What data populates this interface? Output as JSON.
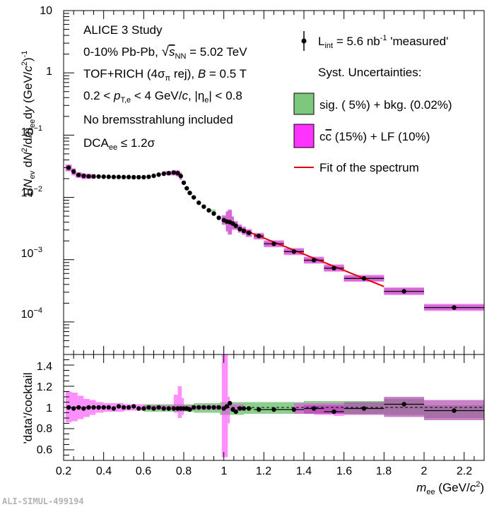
{
  "colors": {
    "sig_band": "#2ea82e",
    "ccbar_band": "#ff33ff",
    "combined_band": "#b04ab0",
    "fit_line": "#e00000",
    "points": "#000000"
  },
  "chart_data": [
    {
      "id": "top",
      "type": "scatter",
      "y_scale": "log",
      "xlim": [
        0.2,
        2.3
      ],
      "ylim": [
        3e-05,
        10
      ],
      "y_ticks": [
        {
          "v": 10,
          "base": "10",
          "exp": ""
        },
        {
          "v": 1,
          "base": "1",
          "exp": ""
        },
        {
          "v": 0.1,
          "base": "10",
          "exp": "−1"
        },
        {
          "v": 0.01,
          "base": "10",
          "exp": "−2"
        },
        {
          "v": 0.001,
          "base": "10",
          "exp": "−3"
        },
        {
          "v": 0.0001,
          "base": "10",
          "exp": "−4"
        }
      ],
      "ylabel": {
        "p1": "1/",
        "N": "N",
        "ev": "ev",
        "p2": " d",
        "N2": "N",
        "s2": "2",
        "p3": "/d",
        "m": "m",
        "ee": "ee",
        "p4": "d",
        "y": "y",
        "p5": " (GeV/",
        "c": "c",
        "s3": "2",
        "p6": ")",
        "s4": "-1"
      },
      "annotations": {
        "study": "ALICE 3 Study",
        "system_a": "0-10% Pb-Pb, ",
        "sqrt_s": "s",
        "sqrt_sub": "NN",
        "system_b": " = 5.02 TeV",
        "pid_a": "TOF+RICH (4σ",
        "pid_sub": "π",
        "pid_b": " rej), ",
        "pid_B": "B",
        "pid_c": " = 0.5 T",
        "kin_a": "0.2 < ",
        "kin_p": "p",
        "kin_sub": "T,e",
        "kin_b": " < 4 GeV/",
        "kin_c": "c",
        "kin_d": ", |η",
        "kin_sub2": "e",
        "kin_e": "| < 0.8",
        "brems": "No bremsstrahlung included",
        "dca_a": "DCA",
        "dca_sub": "ee",
        "dca_b": " ≤ 1.2σ"
      },
      "legend": {
        "placement": "top-right",
        "data_a": "L",
        "data_sub": "int",
        "data_b": " = 5.6 nb",
        "data_sup": "-1",
        "data_c": " 'measured'",
        "syst_title": "Syst. Uncertainties:",
        "sig": "sig. ( 5%) + bkg. (0.02%)",
        "ccbar_a": "c",
        "ccbar_bar": "c",
        "ccbar_b": " (15%) + LF (10%)",
        "fit": "Fit of the spectrum"
      },
      "points": [
        {
          "x": 0.225,
          "y": 0.03,
          "hw": 0.01
        },
        {
          "x": 0.25,
          "y": 0.026,
          "hw": 0.01
        },
        {
          "x": 0.275,
          "y": 0.023,
          "hw": 0.01
        },
        {
          "x": 0.3,
          "y": 0.0222,
          "hw": 0.01
        },
        {
          "x": 0.325,
          "y": 0.0218,
          "hw": 0.01
        },
        {
          "x": 0.35,
          "y": 0.0217,
          "hw": 0.01
        },
        {
          "x": 0.375,
          "y": 0.0216,
          "hw": 0.01
        },
        {
          "x": 0.4,
          "y": 0.0215,
          "hw": 0.01
        },
        {
          "x": 0.425,
          "y": 0.0214,
          "hw": 0.01
        },
        {
          "x": 0.45,
          "y": 0.0213,
          "hw": 0.01
        },
        {
          "x": 0.475,
          "y": 0.0213,
          "hw": 0.01
        },
        {
          "x": 0.5,
          "y": 0.0212,
          "hw": 0.01
        },
        {
          "x": 0.525,
          "y": 0.0212,
          "hw": 0.01
        },
        {
          "x": 0.55,
          "y": 0.0211,
          "hw": 0.01
        },
        {
          "x": 0.575,
          "y": 0.0211,
          "hw": 0.01
        },
        {
          "x": 0.6,
          "y": 0.0211,
          "hw": 0.01
        },
        {
          "x": 0.625,
          "y": 0.0214,
          "hw": 0.01
        },
        {
          "x": 0.65,
          "y": 0.0222,
          "hw": 0.01
        },
        {
          "x": 0.675,
          "y": 0.0232,
          "hw": 0.01
        },
        {
          "x": 0.7,
          "y": 0.024,
          "hw": 0.01
        },
        {
          "x": 0.725,
          "y": 0.0245,
          "hw": 0.01
        },
        {
          "x": 0.75,
          "y": 0.025,
          "hw": 0.01
        },
        {
          "x": 0.77,
          "y": 0.0245,
          "hw": 0.008
        },
        {
          "x": 0.785,
          "y": 0.022,
          "hw": 0.006
        },
        {
          "x": 0.8,
          "y": 0.0172,
          "hw": 0.006
        },
        {
          "x": 0.815,
          "y": 0.014,
          "hw": 0.006
        },
        {
          "x": 0.83,
          "y": 0.0118,
          "hw": 0.006
        },
        {
          "x": 0.85,
          "y": 0.01,
          "hw": 0.008
        },
        {
          "x": 0.875,
          "y": 0.0082,
          "hw": 0.01
        },
        {
          "x": 0.9,
          "y": 0.0071,
          "hw": 0.01
        },
        {
          "x": 0.925,
          "y": 0.0062,
          "hw": 0.01
        },
        {
          "x": 0.95,
          "y": 0.0055,
          "hw": 0.01
        },
        {
          "x": 0.975,
          "y": 0.0047,
          "hw": 0.01
        },
        {
          "x": 1.0,
          "y": 0.0043,
          "hw": 0.008
        },
        {
          "x": 1.015,
          "y": 0.0041,
          "hw": 0.006
        },
        {
          "x": 1.03,
          "y": 0.004,
          "hw": 0.006
        },
        {
          "x": 1.045,
          "y": 0.0038,
          "hw": 0.006
        },
        {
          "x": 1.06,
          "y": 0.0035,
          "hw": 0.008
        },
        {
          "x": 1.08,
          "y": 0.0031,
          "hw": 0.01
        },
        {
          "x": 1.1,
          "y": 0.0029,
          "hw": 0.01
        },
        {
          "x": 1.125,
          "y": 0.0027,
          "hw": 0.015
        },
        {
          "x": 1.175,
          "y": 0.0024,
          "hw": 0.025
        },
        {
          "x": 1.25,
          "y": 0.0018,
          "hw": 0.05
        },
        {
          "x": 1.35,
          "y": 0.00135,
          "hw": 0.05
        },
        {
          "x": 1.45,
          "y": 0.00098,
          "hw": 0.05
        },
        {
          "x": 1.55,
          "y": 0.00073,
          "hw": 0.05
        },
        {
          "x": 1.7,
          "y": 0.0005,
          "hw": 0.1
        },
        {
          "x": 1.9,
          "y": 0.00031,
          "hw": 0.1
        },
        {
          "x": 2.15,
          "y": 0.00017,
          "hw": 0.15
        }
      ],
      "bands": [
        {
          "x0": 0.21,
          "x1": 0.24,
          "lo": 0.026,
          "hi": 0.034
        },
        {
          "x0": 0.24,
          "x1": 0.26,
          "lo": 0.0225,
          "hi": 0.0295
        },
        {
          "x0": 0.26,
          "x1": 0.29,
          "lo": 0.0205,
          "hi": 0.0255
        },
        {
          "x0": 0.29,
          "x1": 0.31,
          "lo": 0.0195,
          "hi": 0.0245
        },
        {
          "x0": 0.31,
          "x1": 0.34,
          "lo": 0.0198,
          "hi": 0.024
        },
        {
          "x0": 0.34,
          "x1": 0.36,
          "lo": 0.0199,
          "hi": 0.0237
        },
        {
          "x0": 0.7,
          "x1": 0.74,
          "lo": 0.0225,
          "hi": 0.0265
        },
        {
          "x0": 0.74,
          "x1": 0.76,
          "lo": 0.0225,
          "hi": 0.0275
        },
        {
          "x0": 0.76,
          "x1": 0.78,
          "lo": 0.0215,
          "hi": 0.0275
        },
        {
          "x0": 0.78,
          "x1": 0.79,
          "lo": 0.019,
          "hi": 0.0255
        },
        {
          "x0": 0.99,
          "x1": 1.01,
          "lo": 0.0036,
          "hi": 0.0052
        },
        {
          "x0": 1.01,
          "x1": 1.02,
          "lo": 0.0028,
          "hi": 0.006
        },
        {
          "x0": 1.02,
          "x1": 1.04,
          "lo": 0.0025,
          "hi": 0.0064
        },
        {
          "x0": 1.04,
          "x1": 1.05,
          "lo": 0.003,
          "hi": 0.005
        },
        {
          "x0": 1.05,
          "x1": 1.07,
          "lo": 0.003,
          "hi": 0.0042
        },
        {
          "x0": 1.07,
          "x1": 1.09,
          "lo": 0.0027,
          "hi": 0.0037
        },
        {
          "x0": 1.09,
          "x1": 1.11,
          "lo": 0.0025,
          "hi": 0.0034
        },
        {
          "x0": 1.11,
          "x1": 1.14,
          "lo": 0.0023,
          "hi": 0.0031
        },
        {
          "x0": 1.15,
          "x1": 1.2,
          "lo": 0.0021,
          "hi": 0.0027
        },
        {
          "x0": 1.2,
          "x1": 1.3,
          "lo": 0.00158,
          "hi": 0.00205
        },
        {
          "x0": 1.3,
          "x1": 1.4,
          "lo": 0.00118,
          "hi": 0.00154
        },
        {
          "x0": 1.4,
          "x1": 1.5,
          "lo": 0.00086,
          "hi": 0.00112
        },
        {
          "x0": 1.5,
          "x1": 1.6,
          "lo": 0.00064,
          "hi": 0.00084
        },
        {
          "x0": 1.6,
          "x1": 1.8,
          "lo": 0.00044,
          "hi": 0.00057
        },
        {
          "x0": 1.8,
          "x1": 2.0,
          "lo": 0.00027,
          "hi": 0.00036
        },
        {
          "x0": 2.0,
          "x1": 2.3,
          "lo": 0.00015,
          "hi": 0.000195
        }
      ],
      "fit": {
        "x": [
          1.1,
          1.8
        ],
        "y": [
          0.003,
          0.00037
        ]
      }
    },
    {
      "id": "ratio",
      "type": "scatter",
      "xlim": [
        0.2,
        2.3
      ],
      "ylim": [
        0.5,
        1.5
      ],
      "y_ticks": [
        "0.6",
        "0.8",
        "1",
        "1.2",
        "1.4"
      ],
      "x_ticks": [
        "0.2",
        "0.4",
        "0.6",
        "0.8",
        "1",
        "1.2",
        "1.4",
        "1.6",
        "1.8",
        "2",
        "2.2"
      ],
      "ylabel": "'data'/cocktail",
      "xlabel": {
        "m": "m",
        "ee": "ee",
        "unit": " (GeV/",
        "c": "c",
        "sup": "2",
        "close": ")"
      },
      "reference_line": 1,
      "points": [
        {
          "x": 0.225,
          "y": 1.0,
          "hw": 0.01
        },
        {
          "x": 0.25,
          "y": 0.99,
          "hw": 0.01
        },
        {
          "x": 0.275,
          "y": 1.0,
          "hw": 0.01
        },
        {
          "x": 0.3,
          "y": 0.99,
          "hw": 0.01
        },
        {
          "x": 0.325,
          "y": 1.0,
          "hw": 0.01
        },
        {
          "x": 0.35,
          "y": 1.0,
          "hw": 0.01
        },
        {
          "x": 0.375,
          "y": 1.0,
          "hw": 0.01
        },
        {
          "x": 0.4,
          "y": 1.0,
          "hw": 0.01
        },
        {
          "x": 0.425,
          "y": 1.0,
          "hw": 0.01
        },
        {
          "x": 0.45,
          "y": 0.99,
          "hw": 0.01
        },
        {
          "x": 0.475,
          "y": 1.01,
          "hw": 0.01
        },
        {
          "x": 0.5,
          "y": 1.0,
          "hw": 0.01
        },
        {
          "x": 0.525,
          "y": 1.0,
          "hw": 0.01
        },
        {
          "x": 0.55,
          "y": 1.01,
          "hw": 0.01
        },
        {
          "x": 0.575,
          "y": 0.99,
          "hw": 0.01
        },
        {
          "x": 0.6,
          "y": 0.99,
          "hw": 0.01
        },
        {
          "x": 0.625,
          "y": 1.0,
          "hw": 0.01
        },
        {
          "x": 0.65,
          "y": 0.99,
          "hw": 0.01
        },
        {
          "x": 0.675,
          "y": 1.0,
          "hw": 0.01
        },
        {
          "x": 0.7,
          "y": 0.99,
          "hw": 0.01
        },
        {
          "x": 0.725,
          "y": 0.99,
          "hw": 0.01
        },
        {
          "x": 0.75,
          "y": 0.99,
          "hw": 0.01
        },
        {
          "x": 0.77,
          "y": 0.99,
          "hw": 0.008
        },
        {
          "x": 0.785,
          "y": 0.99,
          "hw": 0.006
        },
        {
          "x": 0.8,
          "y": 0.99,
          "hw": 0.006
        },
        {
          "x": 0.815,
          "y": 0.99,
          "hw": 0.006
        },
        {
          "x": 0.83,
          "y": 0.98,
          "hw": 0.006
        },
        {
          "x": 0.85,
          "y": 1.0,
          "hw": 0.008
        },
        {
          "x": 0.875,
          "y": 1.0,
          "hw": 0.01
        },
        {
          "x": 0.9,
          "y": 1.0,
          "hw": 0.01
        },
        {
          "x": 0.925,
          "y": 1.0,
          "hw": 0.01
        },
        {
          "x": 0.95,
          "y": 1.0,
          "hw": 0.01
        },
        {
          "x": 0.975,
          "y": 1.0,
          "hw": 0.01
        },
        {
          "x": 1.0,
          "y": 0.99,
          "hw": 0.008
        },
        {
          "x": 1.015,
          "y": 1.01,
          "hw": 0.006
        },
        {
          "x": 1.03,
          "y": 1.04,
          "hw": 0.006
        },
        {
          "x": 1.045,
          "y": 0.98,
          "hw": 0.006
        },
        {
          "x": 1.06,
          "y": 0.96,
          "hw": 0.008
        },
        {
          "x": 1.08,
          "y": 0.99,
          "hw": 0.01
        },
        {
          "x": 1.1,
          "y": 0.99,
          "hw": 0.01
        },
        {
          "x": 1.125,
          "y": 0.99,
          "hw": 0.015
        },
        {
          "x": 1.175,
          "y": 0.98,
          "hw": 0.025
        },
        {
          "x": 1.25,
          "y": 0.98,
          "hw": 0.05
        },
        {
          "x": 1.35,
          "y": 0.98,
          "hw": 0.05
        },
        {
          "x": 1.45,
          "y": 0.99,
          "hw": 0.05
        },
        {
          "x": 1.55,
          "y": 0.96,
          "hw": 0.05
        },
        {
          "x": 1.7,
          "y": 0.99,
          "hw": 0.1
        },
        {
          "x": 1.9,
          "y": 1.03,
          "hw": 0.1
        },
        {
          "x": 2.15,
          "y": 0.97,
          "hw": 0.15
        }
      ],
      "sig_bands": [
        {
          "x0": 0.6,
          "x1": 0.85,
          "lo": 0.96,
          "hi": 1.03
        },
        {
          "x0": 0.85,
          "x1": 0.98,
          "lo": 0.95,
          "hi": 1.04
        },
        {
          "x0": 0.98,
          "x1": 1.1,
          "lo": 0.93,
          "hi": 1.05
        },
        {
          "x0": 1.1,
          "x1": 1.4,
          "lo": 0.94,
          "hi": 1.05
        },
        {
          "x0": 1.4,
          "x1": 1.8,
          "lo": 0.94,
          "hi": 1.06
        },
        {
          "x0": 1.8,
          "x1": 2.0,
          "lo": 0.93,
          "hi": 1.08
        },
        {
          "x0": 2.0,
          "x1": 2.3,
          "lo": 0.9,
          "hi": 1.02
        }
      ],
      "ccbar_bands": [
        {
          "x0": 0.21,
          "x1": 0.24,
          "lo": 0.86,
          "hi": 1.15
        },
        {
          "x0": 0.24,
          "x1": 0.27,
          "lo": 0.87,
          "hi": 1.14
        },
        {
          "x0": 0.27,
          "x1": 0.3,
          "lo": 0.89,
          "hi": 1.11
        },
        {
          "x0": 0.3,
          "x1": 0.33,
          "lo": 0.91,
          "hi": 1.08
        },
        {
          "x0": 0.33,
          "x1": 0.36,
          "lo": 0.93,
          "hi": 1.07
        },
        {
          "x0": 0.36,
          "x1": 0.4,
          "lo": 0.95,
          "hi": 1.05
        },
        {
          "x0": 0.4,
          "x1": 0.5,
          "lo": 0.96,
          "hi": 1.04
        },
        {
          "x0": 0.5,
          "x1": 0.6,
          "lo": 0.97,
          "hi": 1.03
        },
        {
          "x0": 0.6,
          "x1": 0.75,
          "lo": 0.98,
          "hi": 1.02
        },
        {
          "x0": 0.75,
          "x1": 0.77,
          "lo": 0.95,
          "hi": 1.12
        },
        {
          "x0": 0.77,
          "x1": 0.79,
          "lo": 0.9,
          "hi": 1.2
        },
        {
          "x0": 0.79,
          "x1": 0.8,
          "lo": 0.93,
          "hi": 1.09
        },
        {
          "x0": 0.8,
          "x1": 0.99,
          "lo": 0.98,
          "hi": 1.02
        },
        {
          "x0": 0.99,
          "x1": 1.02,
          "lo": 0.53,
          "hi": 1.5
        },
        {
          "x0": 1.02,
          "x1": 1.03,
          "lo": 0.85,
          "hi": 1.1
        },
        {
          "x0": 1.03,
          "x1": 1.1,
          "lo": 0.97,
          "hi": 1.03
        },
        {
          "x0": 1.35,
          "x1": 1.45,
          "lo": 0.94,
          "hi": 1.04
        },
        {
          "x0": 1.45,
          "x1": 1.55,
          "lo": 0.93,
          "hi": 1.04
        },
        {
          "x0": 1.55,
          "x1": 1.6,
          "lo": 0.92,
          "hi": 1.04
        }
      ],
      "combined_bands": [
        {
          "x0": 1.4,
          "x1": 1.6,
          "lo": 0.94,
          "hi": 1.02
        },
        {
          "x0": 1.6,
          "x1": 1.8,
          "lo": 0.93,
          "hi": 1.05
        },
        {
          "x0": 1.8,
          "x1": 2.0,
          "lo": 0.91,
          "hi": 1.1
        },
        {
          "x0": 2.0,
          "x1": 2.3,
          "lo": 0.88,
          "hi": 1.07
        }
      ]
    }
  ],
  "watermark": "ALI-SIMUL-499194"
}
